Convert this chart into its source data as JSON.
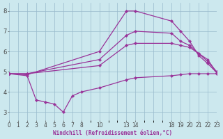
{
  "xlabel": "Windchill (Refroidissement éolien,°C)",
  "background_color": "#cce8ee",
  "line_color": "#993399",
  "grid_color": "#99bbcc",
  "lines": [
    {
      "x": [
        0,
        2,
        10,
        13,
        14,
        18,
        19,
        20,
        21,
        22,
        23
      ],
      "y": [
        4.9,
        4.85,
        6.0,
        8.0,
        8.0,
        7.5,
        7.0,
        6.5,
        5.8,
        5.4,
        4.95
      ]
    },
    {
      "x": [
        0,
        2,
        10,
        13,
        14,
        18,
        19,
        20,
        21,
        22,
        23
      ],
      "y": [
        4.9,
        4.9,
        5.6,
        6.8,
        7.0,
        6.9,
        6.5,
        6.3,
        5.9,
        5.5,
        5.0
      ]
    },
    {
      "x": [
        0,
        2,
        10,
        13,
        14,
        18,
        19,
        20,
        21,
        22,
        23
      ],
      "y": [
        4.9,
        4.9,
        5.3,
        6.3,
        6.4,
        6.4,
        6.3,
        6.2,
        5.9,
        5.6,
        4.95
      ]
    },
    {
      "x": [
        0,
        2,
        3,
        4,
        5,
        6,
        7,
        8,
        10,
        13,
        14,
        18,
        19,
        20,
        21,
        22,
        23
      ],
      "y": [
        4.9,
        4.8,
        3.6,
        3.5,
        3.4,
        3.0,
        3.8,
        4.0,
        4.2,
        4.6,
        4.7,
        4.8,
        4.85,
        4.9,
        4.9,
        4.9,
        4.9
      ]
    }
  ],
  "xlim": [
    0,
    23
  ],
  "ylim": [
    2.6,
    8.4
  ],
  "xticks": [
    0,
    1,
    2,
    3,
    4,
    5,
    6,
    7,
    8,
    10,
    13,
    14,
    18,
    19,
    20,
    21,
    22,
    23
  ],
  "yticks": [
    3,
    4,
    5,
    6,
    7,
    8
  ]
}
